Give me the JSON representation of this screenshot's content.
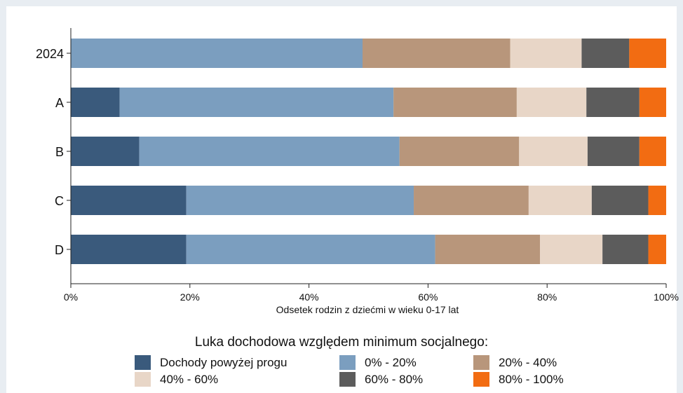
{
  "chart_data": {
    "type": "bar",
    "orientation": "horizontal",
    "stacked": true,
    "categories": [
      "2024",
      "A",
      "B",
      "C",
      "D"
    ],
    "series": [
      {
        "name": "Dochody powyżej progu",
        "color": "#3a5a7c",
        "values": [
          0.0,
          8.2,
          11.5,
          19.4,
          19.4
        ]
      },
      {
        "name": "0% - 20%",
        "color": "#7b9ebf",
        "values": [
          49.0,
          46.0,
          43.7,
          38.2,
          41.8
        ]
      },
      {
        "name": "20% - 40%",
        "color": "#b8967b",
        "values": [
          24.8,
          20.7,
          20.1,
          19.3,
          17.6
        ]
      },
      {
        "name": "40% - 60%",
        "color": "#e8d6c7",
        "values": [
          12.0,
          11.7,
          11.5,
          10.6,
          10.5
        ]
      },
      {
        "name": "60% - 80%",
        "color": "#5c5c5c",
        "values": [
          8.0,
          8.9,
          8.7,
          9.5,
          7.7
        ]
      },
      {
        "name": "80% - 100%",
        "color": "#f26c12",
        "values": [
          6.2,
          4.5,
          4.5,
          3.0,
          3.0
        ]
      }
    ],
    "xlabel": "Odsetek rodzin z dziećmi w wieku 0-17 lat",
    "xticks": [
      "0%",
      "20%",
      "40%",
      "60%",
      "80%",
      "100%"
    ],
    "xlim": [
      0,
      100
    ],
    "grid": false,
    "legend": {
      "title": "Luka dochodowa względem minimum socjalnego:",
      "placement": "bottom"
    }
  }
}
